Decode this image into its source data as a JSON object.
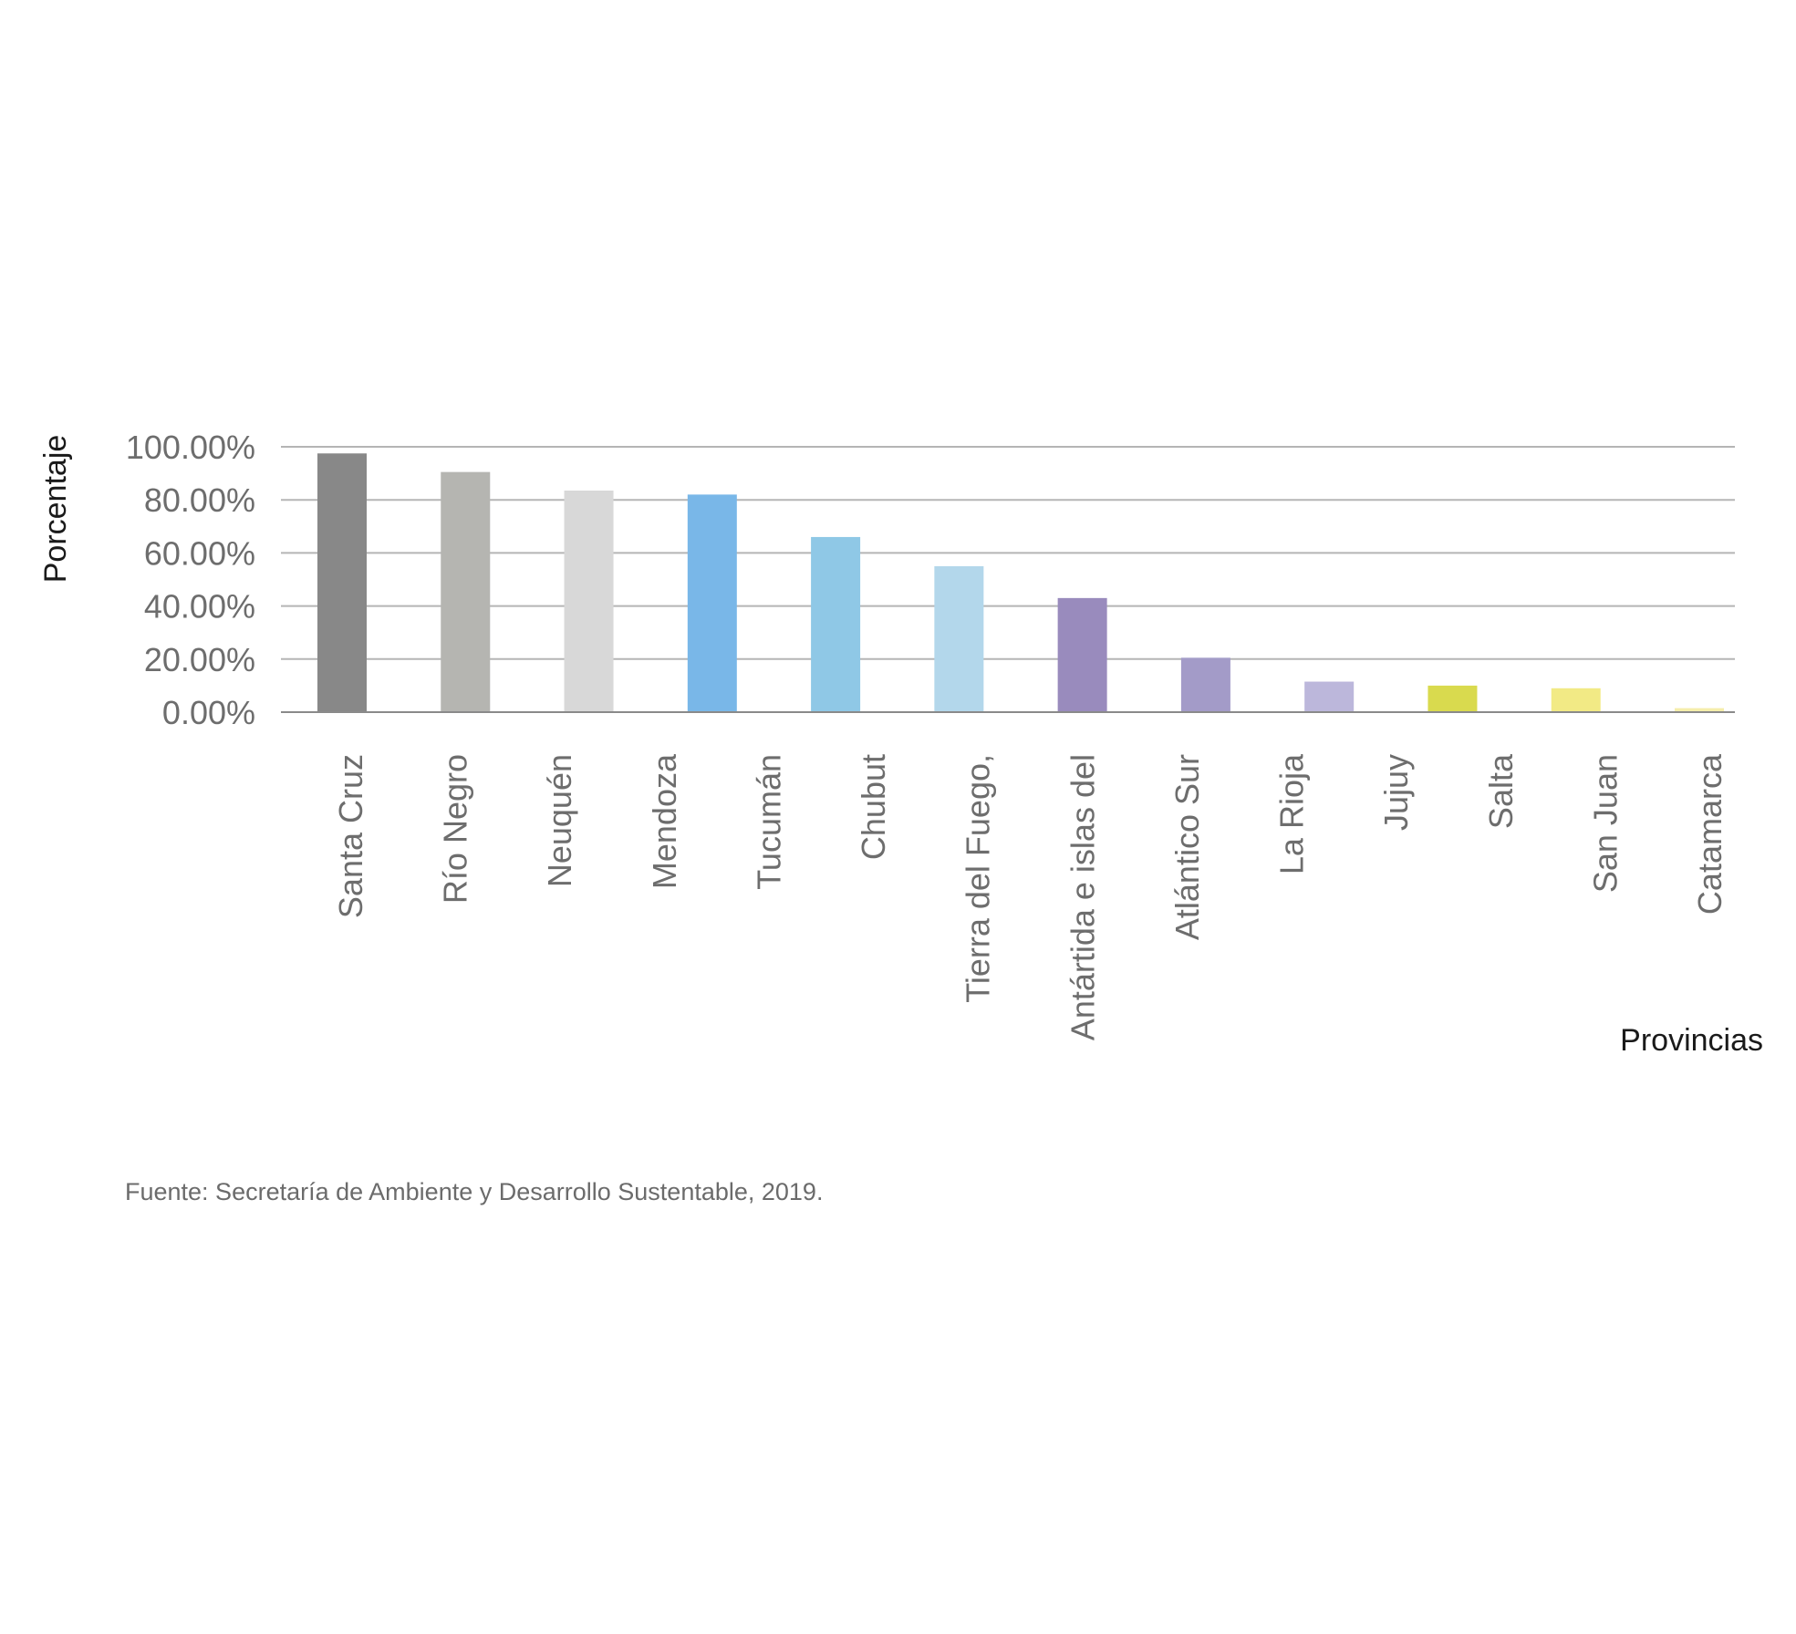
{
  "chart_data": {
    "type": "bar",
    "title": "",
    "xlabel": "Provincias",
    "ylabel": "Porcentaje",
    "ylim": [
      0,
      100
    ],
    "y_ticks": [
      "0.00%",
      "20.00%",
      "40.00%",
      "60.00%",
      "80.00%",
      "100.00%"
    ],
    "y_tick_values": [
      0,
      20,
      40,
      60,
      80,
      100
    ],
    "grid": true,
    "legend": "none",
    "categories": [
      "Santa Cruz",
      "Río Negro",
      "Neuquén",
      "Mendoza",
      "Tucumán",
      "Chubut",
      "Tierra del Fuego,",
      "Antártida e islas del",
      "Atlántico Sur",
      "La Rioja",
      "Jujuy",
      "Salta",
      "San Juan",
      "Catamarca"
    ],
    "values": [
      97.5,
      90.5,
      83.5,
      82,
      66,
      55,
      43,
      20.5,
      11.5,
      10,
      9,
      1.5,
      null,
      null
    ],
    "colors": [
      "#888888",
      "#b5b5b1",
      "#d8d8d8",
      "#79b7e8",
      "#8fc8e6",
      "#b3d7eb",
      "#998bbd",
      "#a39bc8",
      "#bcb7db",
      "#d9da4e",
      "#f2ea85",
      "#f5eeab"
    ]
  },
  "source_note": "Fuente: Secretaría de Ambiente y Desarrollo Sustentable, 2019."
}
